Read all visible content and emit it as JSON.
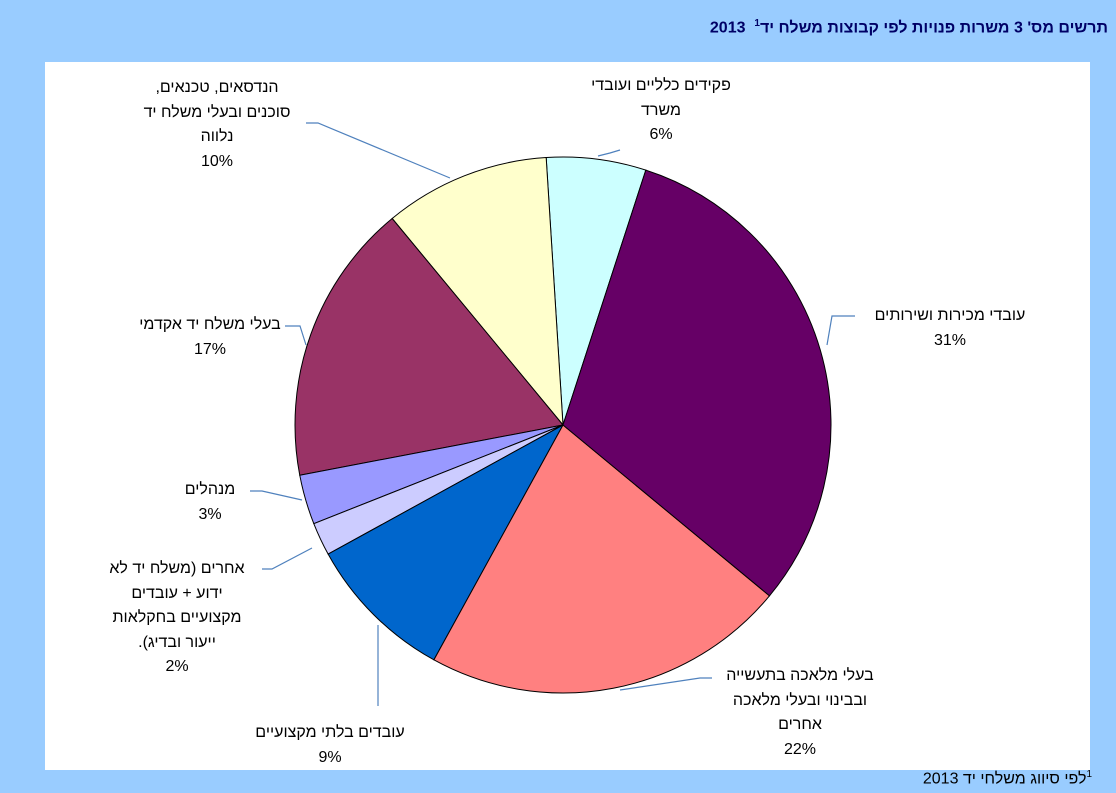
{
  "chart_data": {
    "type": "pie",
    "title": "תרשים מס' 3 משרות פנויות לפי קבוצות משלח יד",
    "title_marker": "1",
    "title_year": "2013",
    "categories": [
      "עובדי מכירות ושירותים",
      "בעלי מלאכה בתעשייה\nובבינוי ובעלי מלאכה\nאחרים",
      "עובדים בלתי מקצועיים",
      "אחרים (משלח יד לא\nידוע + עובדים\nמקצועיים בחקלאות\nייעור ובדיג).",
      "מנהלים",
      "בעלי משלח יד אקדמי",
      "הנדסאים, טכנאים,\nסוכנים ובעלי משלח יד\nנלווה",
      "פקידים כלליים ועובדי\nמשרד"
    ],
    "values": [
      31,
      22,
      9,
      2,
      3,
      17,
      10,
      6
    ],
    "value_labels": [
      "31%",
      "22%",
      "9%",
      "2%",
      "3%",
      "17%",
      "10%",
      "6%"
    ],
    "colors": [
      "#660066",
      "#ff8080",
      "#0066cc",
      "#ccccff",
      "#9999ff",
      "#993366",
      "#ffffcc",
      "#ccffff"
    ],
    "footnote_marker": "1",
    "footnote": "לפי סיווג משלחי יד 2013"
  }
}
